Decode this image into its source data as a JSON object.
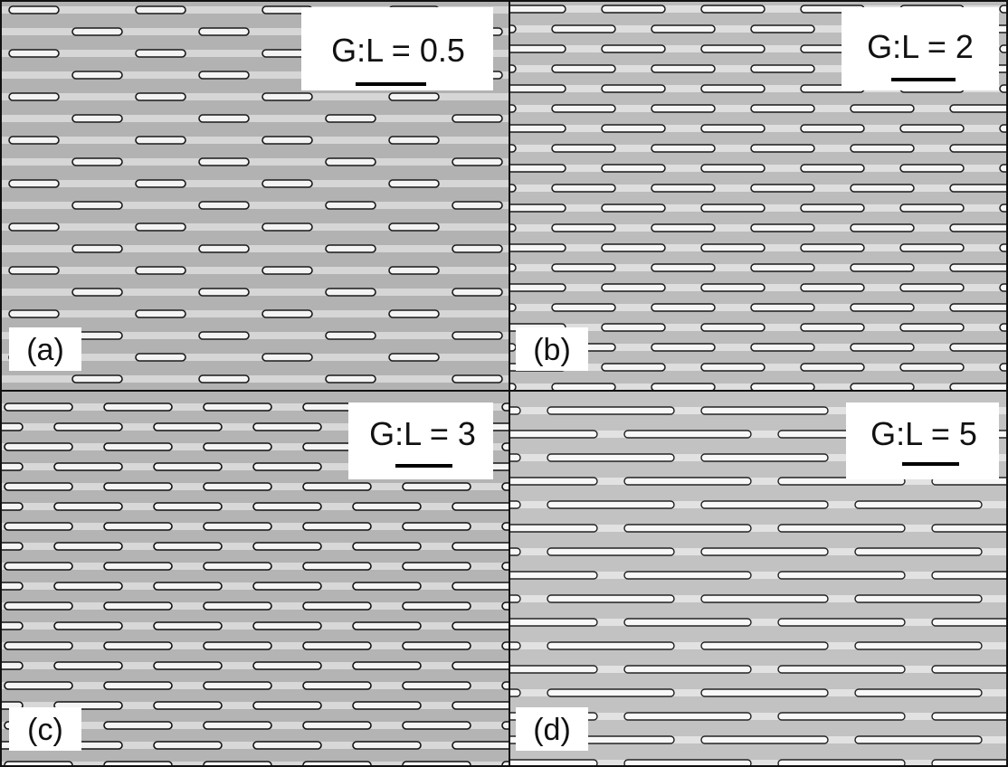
{
  "panels": [
    {
      "letter": "(a)",
      "ratio": "G:L = 0.5"
    },
    {
      "letter": "(b)",
      "ratio": "G:L = 2"
    },
    {
      "letter": "(c)",
      "ratio": "G:L = 3"
    },
    {
      "letter": "(d)",
      "ratio": "G:L = 5"
    }
  ]
}
